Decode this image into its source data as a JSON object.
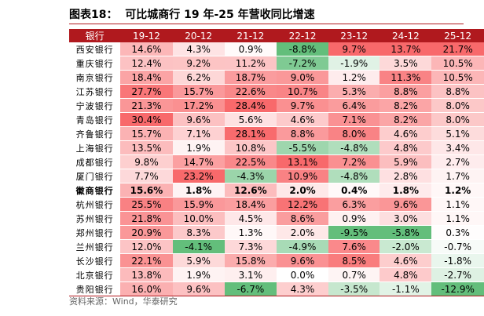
{
  "title": "图表18：  可比城商行 19 年-25 年营收同比增速",
  "table": {
    "header": [
      "银行",
      "19-12",
      "20-12",
      "21-12",
      "22-12",
      "23-12",
      "24-12",
      "25-12"
    ],
    "rows": [
      [
        "西安银行",
        "14.6%",
        "4.3%",
        "0.9%",
        "-8.8%",
        "9.7%",
        "13.7%",
        "21.7%"
      ],
      [
        "重庆银行",
        "12.4%",
        "9.2%",
        "11.2%",
        "-7.2%",
        "-1.9%",
        "3.5%",
        "10.5%"
      ],
      [
        "南京银行",
        "18.4%",
        "6.2%",
        "18.7%",
        "9.0%",
        "1.2%",
        "11.3%",
        "10.5%"
      ],
      [
        "江苏银行",
        "27.7%",
        "15.7%",
        "22.6%",
        "10.7%",
        "5.3%",
        "8.8%",
        "8.8%"
      ],
      [
        "宁波银行",
        "21.3%",
        "17.2%",
        "28.4%",
        "9.7%",
        "6.4%",
        "8.2%",
        "8.0%"
      ],
      [
        "青岛银行",
        "30.4%",
        "9.6%",
        "5.6%",
        "4.6%",
        "7.1%",
        "8.2%",
        "8.0%"
      ],
      [
        "齐鲁银行",
        "15.7%",
        "7.1%",
        "28.1%",
        "8.8%",
        "8.0%",
        "4.6%",
        "5.1%"
      ],
      [
        "上海银行",
        "13.5%",
        "1.9%",
        "10.8%",
        "-5.5%",
        "-4.8%",
        "4.8%",
        "3.4%"
      ],
      [
        "成都银行",
        "9.8%",
        "14.7%",
        "22.5%",
        "13.1%",
        "7.2%",
        "5.9%",
        "2.7%"
      ],
      [
        "厦门银行",
        "7.7%",
        "23.2%",
        "-4.3%",
        "10.9%",
        "-4.8%",
        "2.8%",
        "1.7%"
      ],
      [
        "徽商银行",
        "15.6%",
        "1.8%",
        "12.6%",
        "2.0%",
        "0.4%",
        "1.8%",
        "1.2%"
      ],
      [
        "杭州银行",
        "25.5%",
        "15.9%",
        "18.4%",
        "12.2%",
        "6.3%",
        "9.6%",
        "1.1%"
      ],
      [
        "苏州银行",
        "21.8%",
        "10.0%",
        "4.5%",
        "8.6%",
        "0.9%",
        "3.0%",
        "1.1%"
      ],
      [
        "郑州银行",
        "20.9%",
        "8.3%",
        "1.3%",
        "2.0%",
        "-9.5%",
        "-5.8%",
        "0.3%"
      ],
      [
        "兰州银行",
        "12.0%",
        "-4.1%",
        "7.3%",
        "-4.9%",
        "7.6%",
        "-2.0%",
        "-0.7%"
      ],
      [
        "长沙银行",
        "22.1%",
        "5.9%",
        "15.8%",
        "9.6%",
        "8.5%",
        "4.6%",
        "-1.8%"
      ],
      [
        "北京银行",
        "13.8%",
        "1.9%",
        "3.1%",
        "0.0%",
        "0.7%",
        "4.8%",
        "-2.7%"
      ],
      [
        "贵阳银行",
        "16.0%",
        "9.6%",
        "-6.7%",
        "4.3%",
        "-3.5%",
        "-1.1%",
        "-12.9%"
      ]
    ]
  },
  "source": "资料来源：Wind，华泰研究"
}
